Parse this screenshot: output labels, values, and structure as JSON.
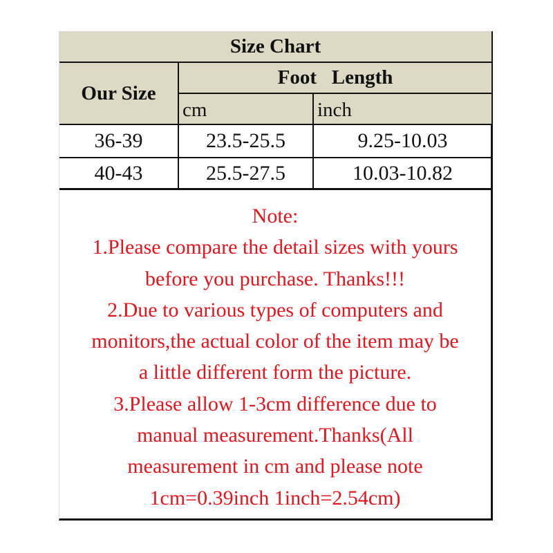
{
  "title": "Size Chart",
  "headers": {
    "our_size": "Our Size",
    "foot_length": "Foot   Length",
    "cm": "cm",
    "inch": "inch"
  },
  "rows": [
    {
      "size": "36-39",
      "cm": "23.5-25.5",
      "inch": "9.25-10.03"
    },
    {
      "size": "40-43",
      "cm": "25.5-27.5",
      "inch": "10.03-10.82"
    }
  ],
  "note_lines": [
    "Note:",
    "1.Please compare the detail sizes with yours",
    "before you purchase. Thanks!!!",
    "2.Due to various types of computers and",
    "monitors,the actual color of the item may be",
    "a little different form the picture.",
    "3.Please allow 1-3cm difference due to",
    "manual measurement.Thanks(All",
    "measurement in cm and please note",
    "1cm=0.39inch 1inch=2.54cm)"
  ],
  "colors": {
    "header_bg": "#ddd9c4",
    "note_text": "#e8141c",
    "border": "#111111"
  }
}
